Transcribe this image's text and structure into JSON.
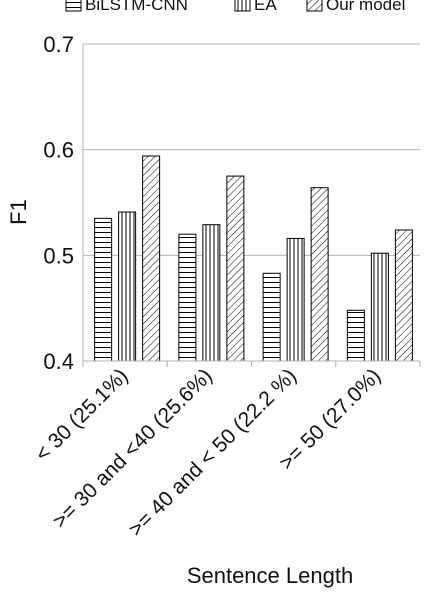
{
  "chart_data": {
    "type": "bar",
    "title": "",
    "xlabel": "Sentence Length",
    "ylabel": "F1",
    "ylim": [
      0.4,
      0.7
    ],
    "yticks": [
      "0.4",
      "0.5",
      "0.6",
      "0.7"
    ],
    "grid": true,
    "legend": "top",
    "categories": [
      "< 30 (25.1%)",
      ">= 30 and <40 (25.6%)",
      ">= 40 and < 50 (22.2 %)",
      ">= 50 (27.0%)"
    ],
    "series": [
      {
        "name": "BiLSTM-CNN",
        "pattern": "horizontal-lines",
        "values": [
          0.535,
          0.52,
          0.483,
          0.448
        ]
      },
      {
        "name": "EA",
        "pattern": "vertical-lines",
        "values": [
          0.541,
          0.529,
          0.516,
          0.502
        ]
      },
      {
        "name": "Our model",
        "pattern": "diagonal-lines",
        "values": [
          0.594,
          0.575,
          0.564,
          0.524
        ]
      }
    ]
  }
}
